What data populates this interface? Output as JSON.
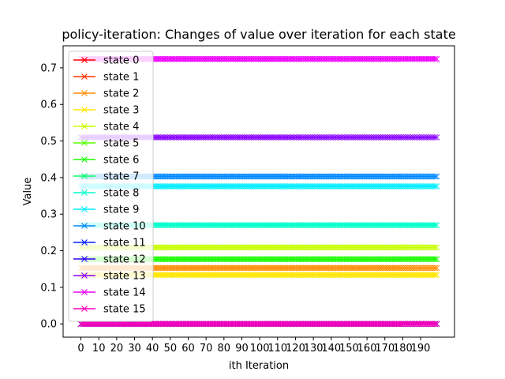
{
  "chart_data": {
    "type": "line",
    "title": "policy-iteration: Changes of value over iteration for each state",
    "xlabel": "ith Iteration",
    "ylabel": "Value",
    "xlim": [
      -9.95,
      208.95
    ],
    "ylim": [
      -0.0362,
      0.7602
    ],
    "x_range": [
      0,
      199
    ],
    "xticks": [
      0,
      10,
      20,
      30,
      40,
      50,
      60,
      70,
      80,
      90,
      100,
      110,
      120,
      130,
      140,
      150,
      160,
      170,
      180,
      190
    ],
    "yticks": [
      0.0,
      0.1,
      0.2,
      0.3,
      0.4,
      0.5,
      0.6,
      0.7
    ],
    "marker": "x",
    "legend_position": "upper-left",
    "series": [
      {
        "name": "state 0",
        "color": "#ff0000",
        "value": 0.0
      },
      {
        "name": "state 1",
        "color": "#ff3300",
        "value": 0.0
      },
      {
        "name": "state 2",
        "color": "#ff8c00",
        "value": 0.153
      },
      {
        "name": "state 3",
        "color": "#ffe600",
        "value": 0.134
      },
      {
        "name": "state 4",
        "color": "#c8ff00",
        "value": 0.209
      },
      {
        "name": "state 5",
        "color": "#55ff00",
        "value": 0.0
      },
      {
        "name": "state 6",
        "color": "#1aff00",
        "value": 0.177
      },
      {
        "name": "state 7",
        "color": "#00ff66",
        "value": 0.0
      },
      {
        "name": "state 8",
        "color": "#00ffcc",
        "value": 0.27
      },
      {
        "name": "state 9",
        "color": "#00eeff",
        "value": 0.376
      },
      {
        "name": "state 10",
        "color": "#0088ff",
        "value": 0.403
      },
      {
        "name": "state 11",
        "color": "#0022ff",
        "value": 0.0
      },
      {
        "name": "state 12",
        "color": "#3300ff",
        "value": 0.0
      },
      {
        "name": "state 13",
        "color": "#8800ff",
        "value": 0.51
      },
      {
        "name": "state 14",
        "color": "#ee00ff",
        "value": 0.724
      },
      {
        "name": "state 15",
        "color": "#ff00bb",
        "value": 0.0
      }
    ]
  }
}
